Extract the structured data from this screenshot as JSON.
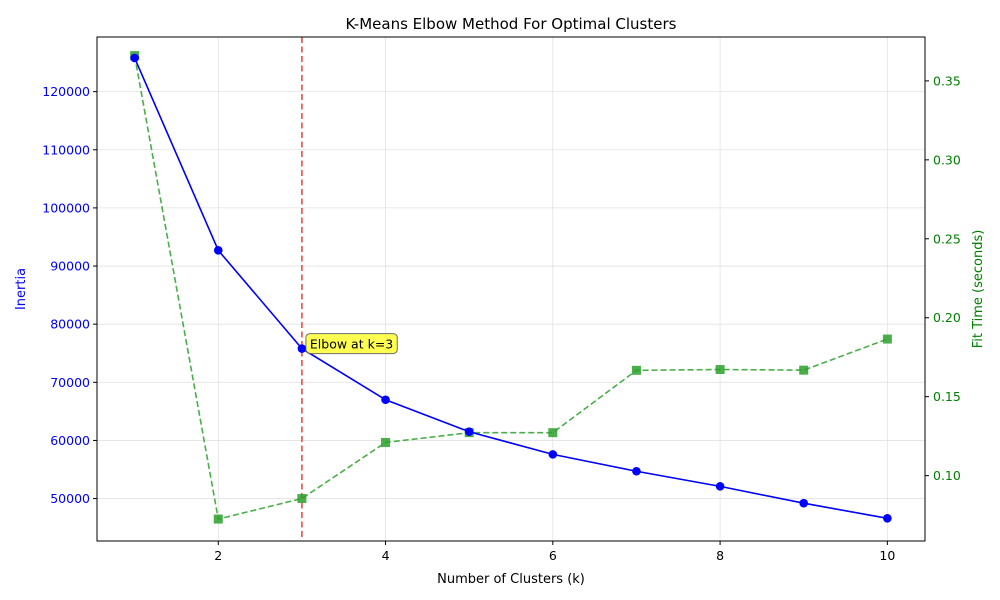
{
  "chart_data": {
    "type": "line",
    "title": "K-Means Elbow Method For Optimal Clusters",
    "xlabel": "Number of Clusters (k)",
    "ylabel": "Inertia",
    "y2label": "Fit Time (seconds)",
    "x": [
      1,
      2,
      3,
      4,
      5,
      6,
      7,
      8,
      9,
      10
    ],
    "xlim": [
      0.55,
      10.45
    ],
    "ylim": [
      42700,
      129400
    ],
    "y2lim": [
      0.0586,
      0.3778
    ],
    "xticks": [
      "2",
      "4",
      "6",
      "8",
      "10"
    ],
    "yticks": [
      "50000",
      "60000",
      "70000",
      "80000",
      "90000",
      "100000",
      "110000",
      "120000"
    ],
    "y2ticks": [
      "0.10",
      "0.15",
      "0.20",
      "0.25",
      "0.30",
      "0.35"
    ],
    "grid": true,
    "series": [
      {
        "axis": "left",
        "color": "#0000ff",
        "marker": "circle",
        "linestyle": "solid",
        "values": [
          125800,
          92700,
          75800,
          67000,
          61500,
          57600,
          54700,
          52100,
          49200,
          46600
        ]
      },
      {
        "axis": "right",
        "color": "#2ca02c",
        "marker": "square",
        "linestyle": "dashed",
        "values": [
          0.366,
          0.0725,
          0.0855,
          0.121,
          0.1272,
          0.1272,
          0.1667,
          0.1672,
          0.1668,
          0.1865
        ]
      }
    ],
    "vline": {
      "x": 3,
      "color": "#e8473a",
      "linestyle": "dashed"
    },
    "annotation": {
      "text": "Elbow at k=3",
      "x": 3,
      "y": 75800,
      "background": "#ffff33"
    }
  }
}
